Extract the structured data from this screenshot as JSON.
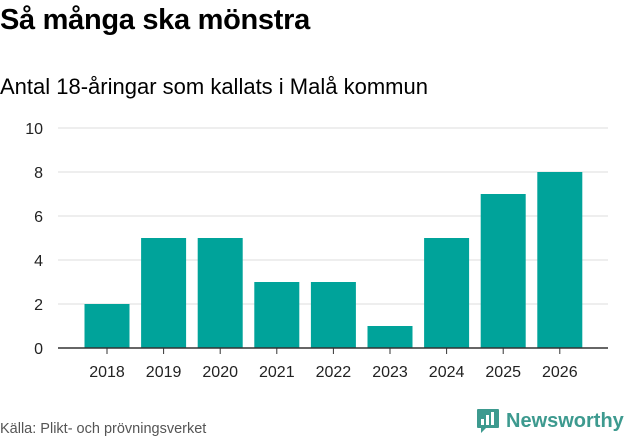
{
  "title": "Så många ska mönstra",
  "subtitle": "Antal 18-åringar som kallats i Malå kommun",
  "source": "Källa: Plikt- och prövningsverket",
  "brand": "Newsworthy",
  "colors": {
    "bar": "#00a39a",
    "grid": "#dedede",
    "axis": "#333333",
    "brand": "#3d9a8f"
  },
  "chart_data": {
    "type": "bar",
    "title": "Så många ska mönstra",
    "subtitle": "Antal 18-åringar som kallats i Malå kommun",
    "xlabel": "",
    "ylabel": "",
    "categories": [
      "2018",
      "2019",
      "2020",
      "2021",
      "2022",
      "2023",
      "2024",
      "2025",
      "2026"
    ],
    "values": [
      2,
      5,
      5,
      3,
      3,
      1,
      5,
      7,
      8
    ],
    "ylim": [
      0,
      10
    ],
    "yticks": [
      0,
      2,
      4,
      6,
      8,
      10
    ],
    "grid": true
  }
}
